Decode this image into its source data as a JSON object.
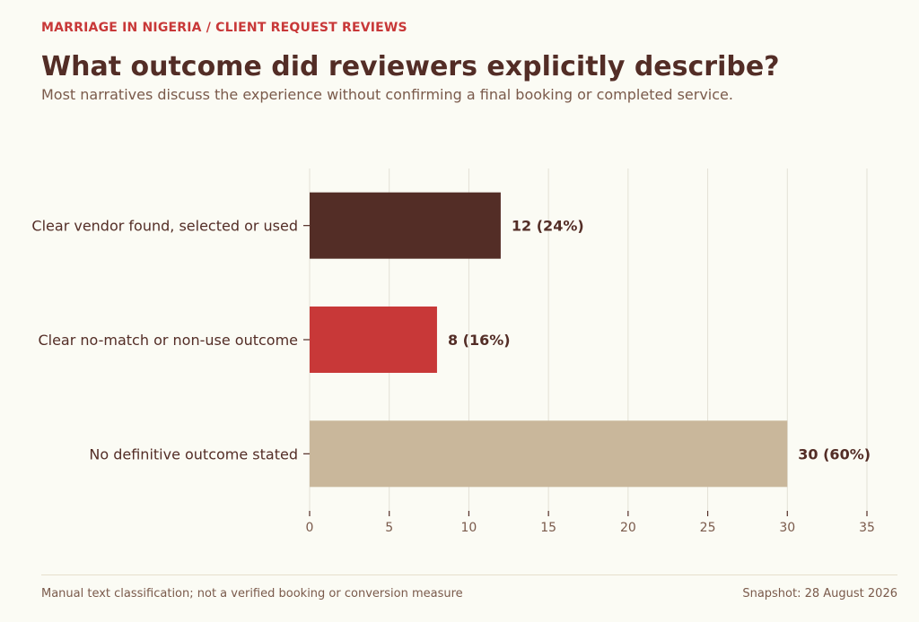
{
  "header": {
    "kicker": "MARRIAGE IN NIGERIA  /  CLIENT REQUEST REVIEWS",
    "title": "What outcome did reviewers explicitly describe?",
    "subtitle": "Most narratives discuss the experience without confirming a final booking or completed service."
  },
  "footer": {
    "note": "Manual text classification; not a verified booking or conversion measure",
    "snapshot": "Snapshot: 28 August 2026"
  },
  "colors": {
    "vendor_found": "#532d26",
    "no_match": "#c83838",
    "no_outcome": "#c9b79b",
    "grid": "#e3e0d6",
    "axis_text": "#7a5a4b",
    "label_text": "#532d26"
  },
  "chart_data": {
    "type": "bar",
    "orientation": "horizontal",
    "categories": [
      "Clear vendor found, selected or used",
      "Clear no-match or non-use outcome",
      "No definitive outcome stated"
    ],
    "values": [
      12,
      8,
      30
    ],
    "data_labels": [
      "12  (24%)",
      "8  (16%)",
      "30  (60%)"
    ],
    "bar_colors": [
      "#532d26",
      "#c83838",
      "#c9b79b"
    ],
    "xlim": [
      0,
      35
    ],
    "xticks": [
      0,
      5,
      10,
      15,
      20,
      25,
      30,
      35
    ],
    "grid": "vertical",
    "title": "",
    "xlabel": "",
    "ylabel": ""
  }
}
